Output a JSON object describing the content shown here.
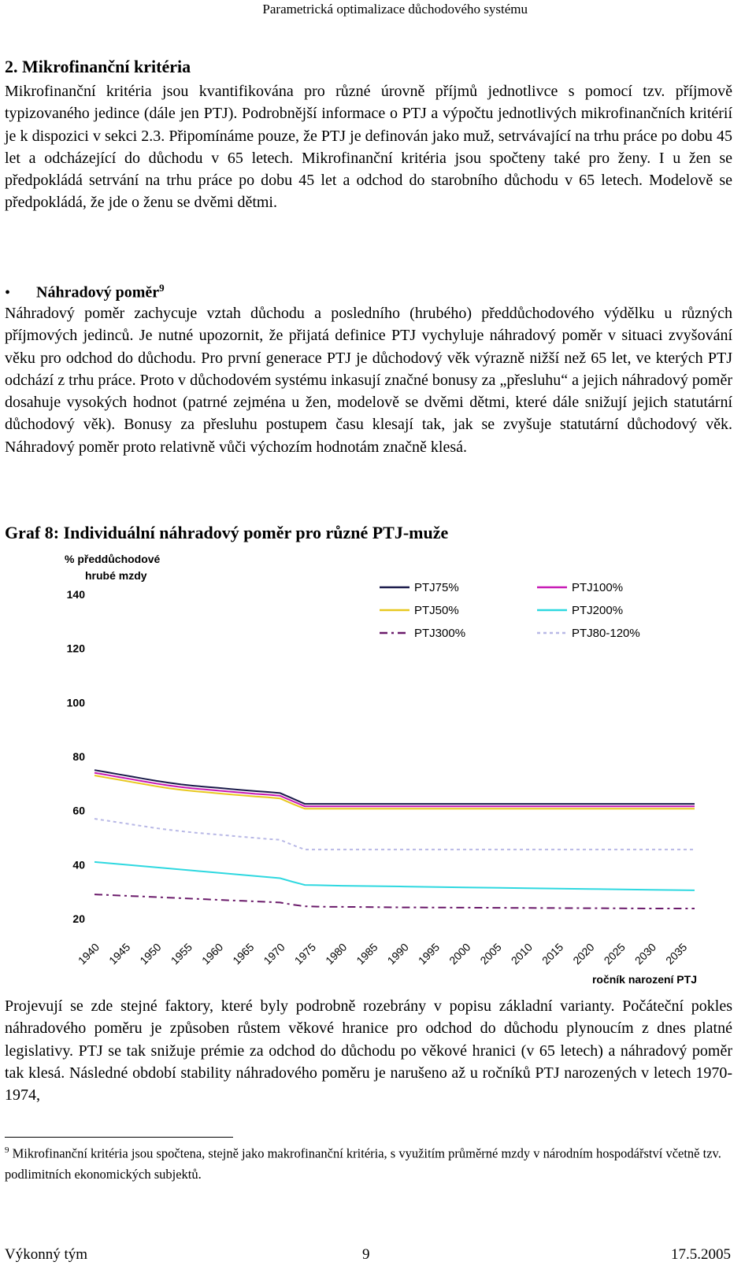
{
  "header": {
    "running_title": "Parametrická optimalizace důchodového systému"
  },
  "section": {
    "title": "2.  Mikrofinanční kritéria"
  },
  "paragraphs": {
    "intro": "Mikrofinanční kritéria jsou kvantifikována pro různé úrovně příjmů jednotlivce s pomocí tzv. příjmově typizovaného jedince (dále jen PTJ). Podrobnější informace o PTJ a výpočtu jednotlivých mikrofinančních kritérií je k dispozici v sekci 2.3. Připomínáme pouze, že PTJ je definován jako muž, setrvávající na trhu práce po dobu 45 let a odcházející do důchodu v 65 letech. Mikrofinanční kritéria jsou spočteny také pro ženy. I u žen se předpokládá setrvání na trhu práce po dobu 45 let a odchod do starobního důchodu v 65 letech. Modelově se předpokládá, že jde o ženu se dvěmi dětmi.",
    "replacement": "Náhradový poměr zachycuje vztah důchodu a posledního (hrubého) předdůchodového výdělku u různých příjmových jedinců. Je nutné upozornit, že přijatá definice PTJ vychyluje náhradový poměr v situaci zvyšování věku pro odchod do důchodu. Pro první generace PTJ je důchodový věk výrazně nižší než 65 let, ve kterých PTJ odchází z trhu práce. Proto v důchodovém systému inkasují značné bonusy za „přesluhu“ a jejich náhradový poměr dosahuje vysokých hodnot (patrné zejména u žen, modelově se dvěmi dětmi, které dále snižují jejich statutární důchodový věk). Bonusy za přesluhu postupem času klesají tak, jak se zvyšuje statutární důchodový věk. Náhradový poměr proto relativně vůči výchozím hodnotám značně klesá.",
    "after_chart": "Projevují se zde stejné faktory, které byly podrobně rozebrány v popisu základní varianty. Počáteční pokles náhradového poměru je způsoben růstem věkové hranice pro odchod do důchodu plynoucím z dnes platné legislativy. PTJ se tak snižuje prémie za odchod do důchodu po věkové hranici (v 65 letech) a náhradový poměr tak klesá. Následné období stability náhradového poměru je narušeno až u ročníků PTJ narozených v letech 1970-1974,"
  },
  "bullet": {
    "symbol": "•",
    "title": "Náhradový poměr",
    "footnote_ref": "9"
  },
  "figure": {
    "caption": "Graf 8: Individuální náhradový poměr pro různé PTJ-muže"
  },
  "chart_data": {
    "type": "line",
    "title": "",
    "ylabel_line1": "% předdůchodové",
    "ylabel_line2": "hrubé mzdy",
    "xlabel": "ročník narození PTJ",
    "ylim": [
      20,
      140
    ],
    "yticks": [
      "140",
      "120",
      "100",
      "80",
      "60",
      "40",
      "20"
    ],
    "xticks": [
      "1940",
      "1945",
      "1950",
      "1955",
      "1960",
      "1965",
      "1970",
      "1975",
      "1980",
      "1985",
      "1990",
      "1995",
      "2000",
      "2005",
      "2010",
      "2015",
      "2020",
      "2025",
      "2030",
      "2035"
    ],
    "x": [
      1940,
      1942,
      1944,
      1946,
      1948,
      1950,
      1952,
      1954,
      1956,
      1958,
      1960,
      1962,
      1964,
      1966,
      1968,
      1970,
      1972,
      1974,
      1976,
      1978,
      1980,
      1990,
      2000,
      2010,
      2020,
      2030,
      2037
    ],
    "legend_position": "top",
    "series": [
      {
        "name": "PTJ75%",
        "color": "#1a1a4a",
        "dash": "solid",
        "values": [
          75,
          74.2,
          73.4,
          72.6,
          71.8,
          71,
          70.3,
          69.7,
          69.2,
          68.8,
          68.4,
          68,
          67.6,
          67.2,
          66.9,
          66.5,
          64.5,
          62.5,
          62.5,
          62.5,
          62.5,
          62.5,
          62.5,
          62.5,
          62.5,
          62.5,
          62.5
        ]
      },
      {
        "name": "PTJ100%",
        "color": "#c71ab5",
        "dash": "solid",
        "values": [
          74,
          73.2,
          72.4,
          71.6,
          70.8,
          70,
          69.3,
          68.7,
          68.2,
          67.8,
          67.4,
          67,
          66.6,
          66.2,
          65.9,
          65.5,
          63.5,
          61.6,
          61.6,
          61.6,
          61.6,
          61.6,
          61.6,
          61.6,
          61.6,
          61.6,
          61.6
        ]
      },
      {
        "name": "PTJ50%",
        "color": "#e8c820",
        "dash": "solid",
        "values": [
          73,
          72.2,
          71.4,
          70.6,
          69.8,
          69,
          68.3,
          67.7,
          67.2,
          66.8,
          66.4,
          66,
          65.6,
          65.2,
          64.9,
          64.5,
          62.5,
          60.7,
          60.7,
          60.7,
          60.7,
          60.7,
          60.7,
          60.7,
          60.7,
          60.7,
          60.7
        ]
      },
      {
        "name": "PTJ200%",
        "color": "#2ed8e0",
        "dash": "solid",
        "values": [
          41,
          40.6,
          40.2,
          39.8,
          39.4,
          39,
          38.6,
          38.2,
          37.8,
          37.4,
          37,
          36.6,
          36.2,
          35.8,
          35.4,
          35,
          33.7,
          32.5,
          32.4,
          32.3,
          32.2,
          31.9,
          31.6,
          31.3,
          31,
          30.7,
          30.5
        ]
      },
      {
        "name": "PTJ300%",
        "color": "#6a1a6a",
        "dash": "dashdot",
        "values": [
          29,
          28.8,
          28.6,
          28.4,
          28.2,
          28,
          27.8,
          27.6,
          27.4,
          27.2,
          27,
          26.8,
          26.6,
          26.4,
          26.2,
          26,
          25.2,
          24.6,
          24.5,
          24.4,
          24.4,
          24.2,
          24.1,
          24,
          23.9,
          23.8,
          23.8
        ]
      },
      {
        "name": "PTJ80-120%",
        "color": "#b8b8e6",
        "dash": "dotted",
        "values": [
          57,
          56.3,
          55.6,
          54.9,
          54.2,
          53.5,
          52.9,
          52.4,
          51.9,
          51.5,
          51.1,
          50.7,
          50.3,
          49.9,
          49.5,
          49.2,
          47.3,
          45.6,
          45.6,
          45.6,
          45.6,
          45.6,
          45.6,
          45.6,
          45.6,
          45.6,
          45.6
        ]
      }
    ]
  },
  "footnote": {
    "number": "9",
    "text": "Mikrofinanční kritéria jsou spočtena, stejně jako makrofinanční kritéria, s využitím průměrné mzdy v národním hospodářství včetně tzv. podlimitních ekonomických subjektů."
  },
  "footer": {
    "left": "Výkonný tým",
    "center": "9",
    "right": "17.5.2005"
  }
}
